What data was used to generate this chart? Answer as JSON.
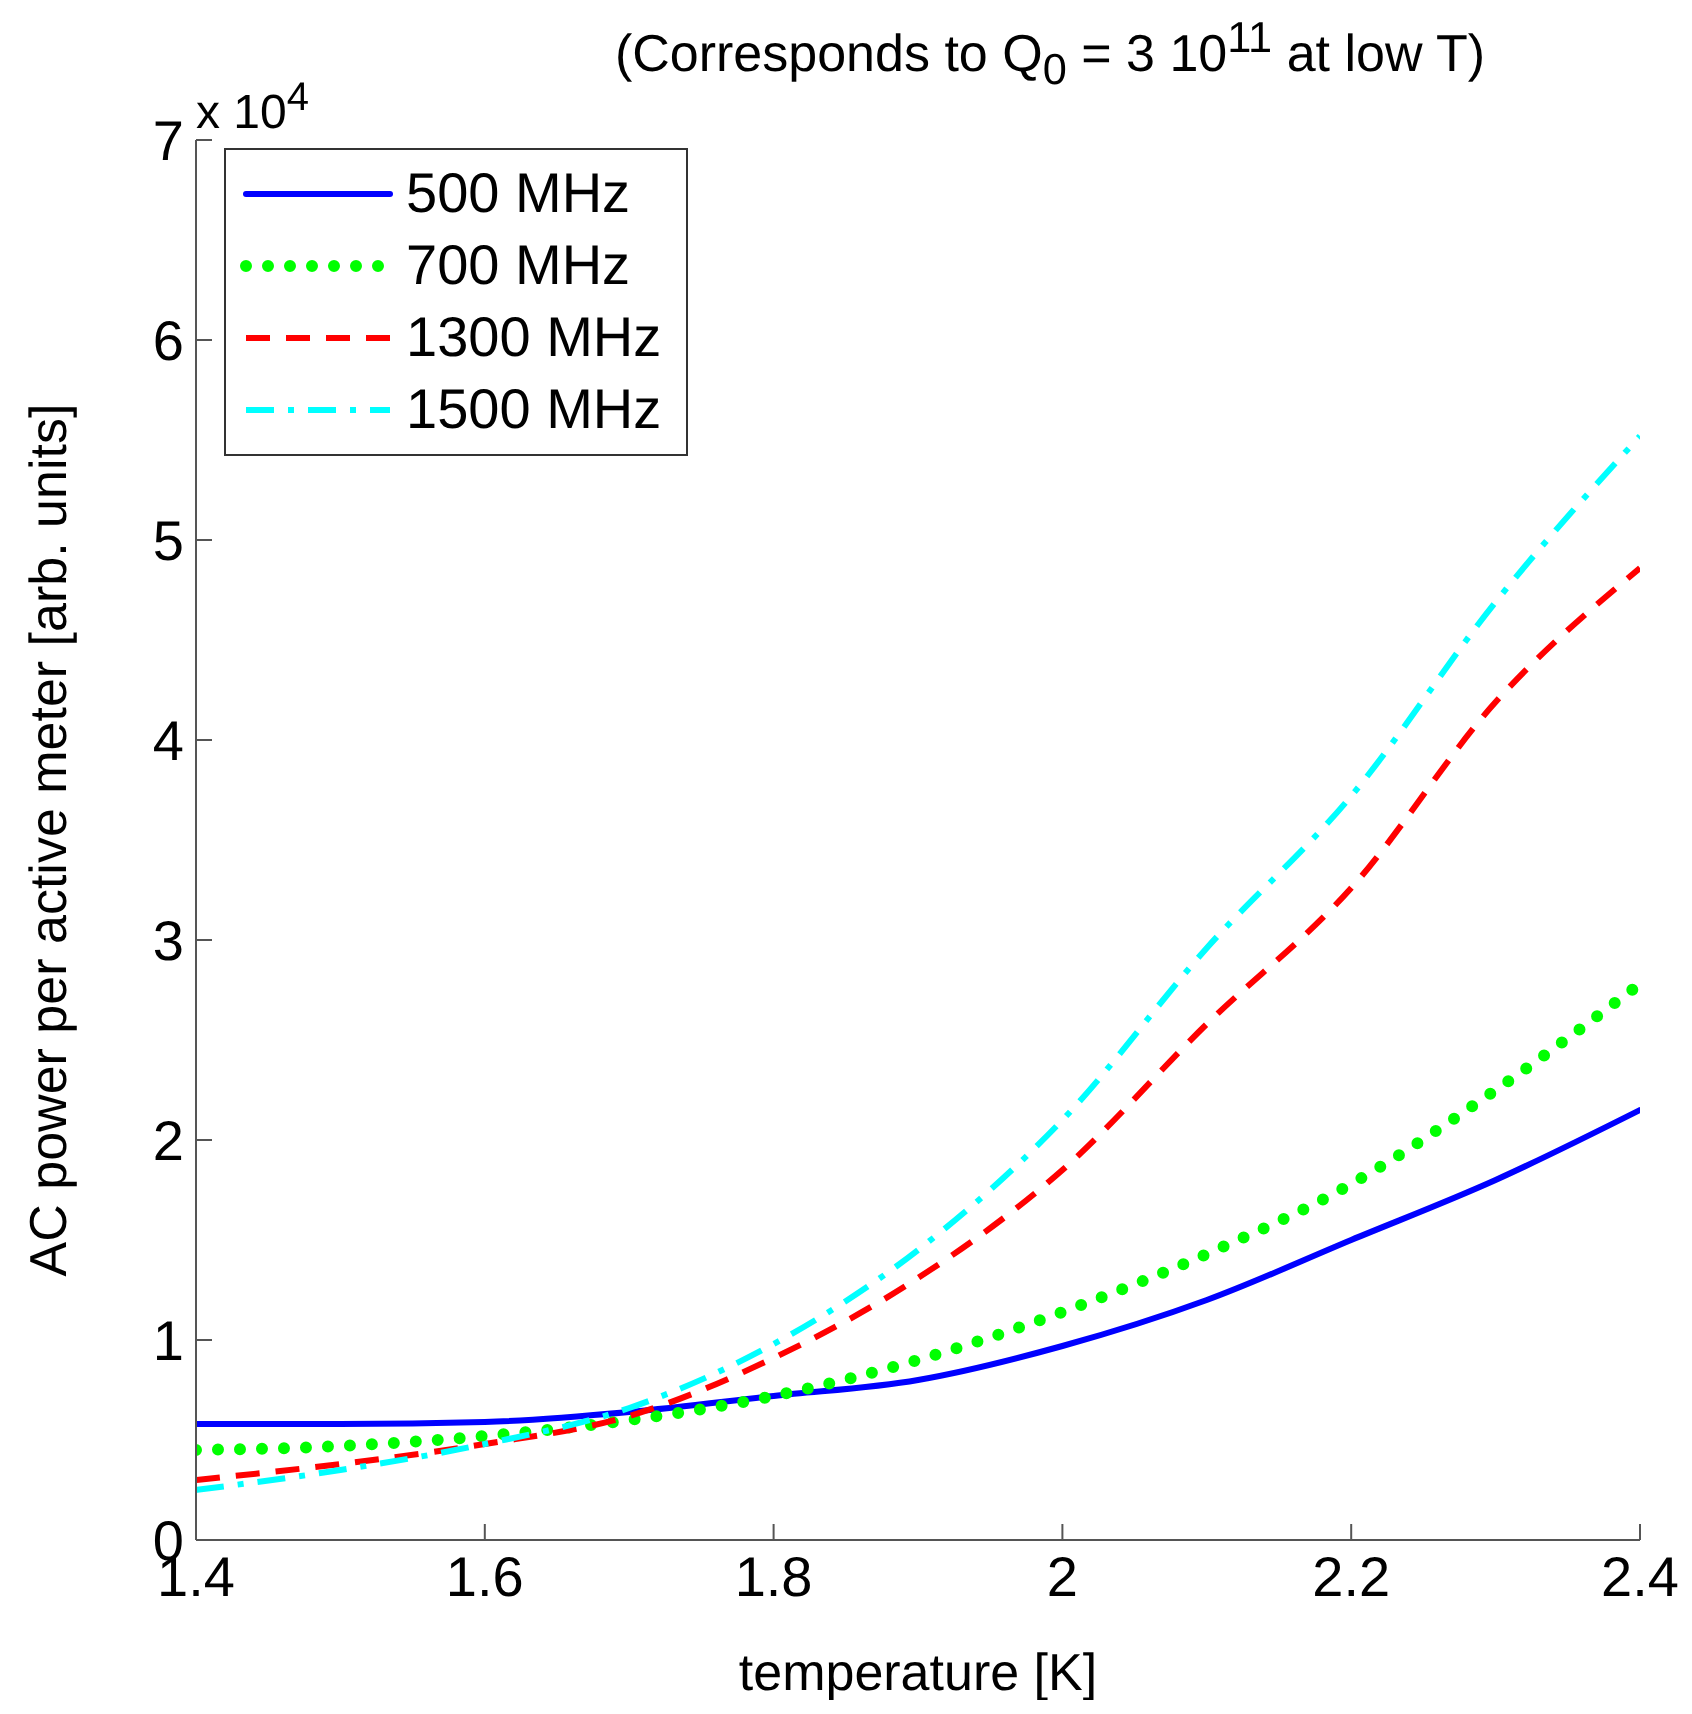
{
  "chart_data": {
    "type": "line",
    "title": "(Corresponds to Q$_{0}$ = 3 10$^{11}$ at low T)",
    "xlabel": "temperature [K]",
    "ylabel": "AC power per active meter [arb. units]",
    "annotations": [
      "x 10$^{4}$"
    ],
    "x": [
      1.4,
      1.5,
      1.6,
      1.7,
      1.8,
      1.9,
      2.0,
      2.1,
      2.2,
      2.3,
      2.4
    ],
    "series": [
      {
        "name": "500 MHz",
        "color": "#0000ff",
        "line_style": "solid",
        "values": [
          0.58,
          0.58,
          0.59,
          0.64,
          0.72,
          0.8,
          0.97,
          1.2,
          1.5,
          1.8,
          2.15
        ]
      },
      {
        "name": "700 MHz",
        "color": "#00ff00",
        "line_style": "dotted",
        "values": [
          0.45,
          0.47,
          0.52,
          0.6,
          0.72,
          0.9,
          1.14,
          1.43,
          1.78,
          2.25,
          2.78
        ]
      },
      {
        "name": "1300 MHz",
        "color": "#ff0000",
        "line_style": "dashed",
        "values": [
          0.3,
          0.38,
          0.48,
          0.62,
          0.91,
          1.31,
          1.85,
          2.58,
          3.26,
          4.19,
          4.86
        ]
      },
      {
        "name": "1500 MHz",
        "color": "#00ffff",
        "line_style": "dashdot",
        "values": [
          0.25,
          0.35,
          0.48,
          0.66,
          0.98,
          1.45,
          2.1,
          2.96,
          3.72,
          4.69,
          5.52
        ]
      }
    ],
    "xlim": [
      1.4,
      2.4
    ],
    "xticks": [
      1.4,
      1.6,
      1.8,
      2,
      2.2,
      2.4
    ],
    "ylim": [
      0,
      7
    ],
    "yticks": [
      0,
      1,
      2,
      3,
      4,
      5,
      6,
      7
    ],
    "grid": false,
    "legend": "top left"
  }
}
